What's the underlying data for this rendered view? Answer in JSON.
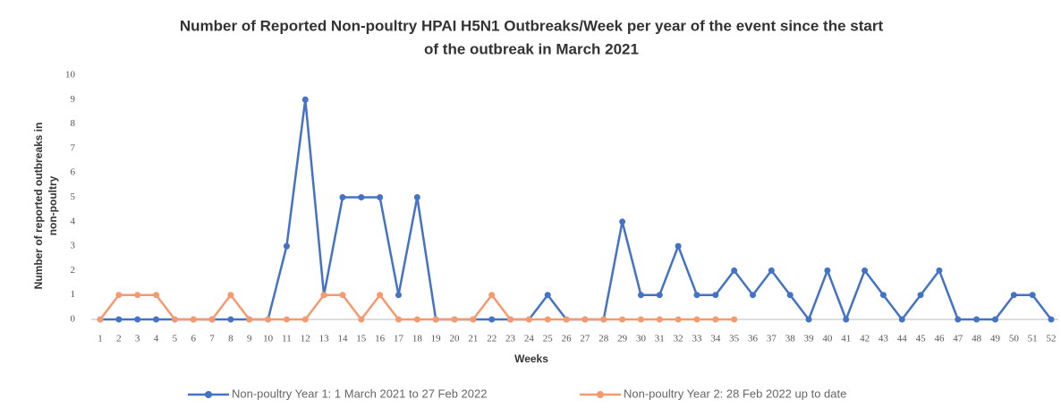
{
  "chart_data": {
    "type": "line",
    "title": [
      "Number of Reported Non-poultry HPAI H5N1 Outbreaks/Week per year of the event since the start",
      "of the outbreak in March 2021"
    ],
    "xlabel": "Weeks",
    "ylabel": [
      "Number of reported outbreaks in",
      "non-poultry"
    ],
    "categories": [
      1,
      2,
      3,
      4,
      5,
      6,
      7,
      8,
      9,
      10,
      11,
      12,
      13,
      14,
      15,
      16,
      17,
      18,
      19,
      20,
      21,
      22,
      23,
      24,
      25,
      26,
      27,
      28,
      29,
      30,
      31,
      32,
      33,
      34,
      35,
      36,
      37,
      38,
      39,
      40,
      41,
      42,
      43,
      44,
      45,
      46,
      47,
      48,
      49,
      50,
      51,
      52
    ],
    "ylim": [
      0,
      10
    ],
    "yticks": [
      0,
      1,
      2,
      3,
      4,
      5,
      6,
      7,
      8,
      9,
      10
    ],
    "grid": false,
    "series": [
      {
        "name": "Non-poultry Year 1: 1 March 2021 to 27 Feb 2022",
        "color": "#4472c4",
        "values": [
          0,
          0,
          0,
          0,
          0,
          0,
          0,
          0,
          0,
          0,
          3,
          9,
          1,
          5,
          5,
          5,
          1,
          5,
          0,
          0,
          0,
          0,
          0,
          0,
          1,
          0,
          0,
          0,
          4,
          1,
          1,
          3,
          1,
          1,
          2,
          1,
          2,
          1,
          0,
          2,
          0,
          2,
          1,
          0,
          1,
          2,
          0,
          0,
          0,
          1,
          1,
          0
        ]
      },
      {
        "name": "Non-poultry Year 2: 28 Feb 2022 up to date",
        "color": "#f59a6e",
        "values": [
          0,
          1,
          1,
          1,
          0,
          0,
          0,
          1,
          0,
          0,
          0,
          0,
          1,
          1,
          0,
          1,
          0,
          0,
          0,
          0,
          0,
          1,
          0,
          0,
          0,
          0,
          0,
          0,
          0,
          0,
          0,
          0,
          0,
          0,
          0,
          null,
          null,
          null,
          null,
          null,
          null,
          null,
          null,
          null,
          null,
          null,
          null,
          null,
          null,
          null,
          null,
          null
        ]
      }
    ]
  }
}
